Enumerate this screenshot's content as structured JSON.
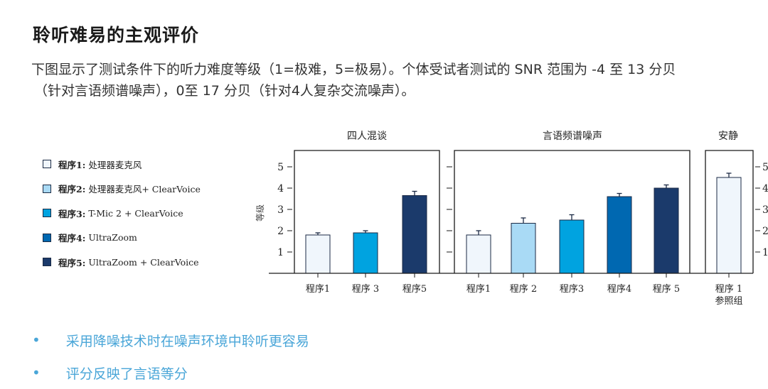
{
  "page": {
    "title": "聆听难易的主观评价",
    "desc_line1": "下图显示了测试条件下的听力难度等级（1=极难，5=极易）。个体受试者测试的 SNR 范围为 -4 至 13 分贝",
    "desc_line2": "（针对言语频谱噪声），0至 17 分贝（针对4人复杂交流噪声）。"
  },
  "legend": [
    {
      "prefix": "程序1:",
      "text": "处理器麦克风",
      "color": "#f0f6fc"
    },
    {
      "prefix": "程序2:",
      "text": "处理器麦克风+ ClearVoice",
      "color": "#a9daf5"
    },
    {
      "prefix": "程序3:",
      "text": "T-Mic 2 + ClearVoice",
      "color": "#00a3e0"
    },
    {
      "prefix": "程序4:",
      "text": "UltraZoom",
      "color": "#0068b1"
    },
    {
      "prefix": "程序5:",
      "text": "UltraZoom + ClearVoice",
      "color": "#1b3a6b"
    }
  ],
  "bullets": [
    "采用降噪技术时在噪声环境中聆听更容易",
    "评分反映了言语等分"
  ],
  "chart_data": {
    "type": "bar",
    "ylabel": "等级",
    "ylim": [
      0,
      5
    ],
    "yticks": [
      1,
      2,
      3,
      4,
      5
    ],
    "panels": [
      {
        "title": "四人混谈",
        "categories": [
          "程序1",
          "程序 3",
          "程序5"
        ],
        "values": [
          1.8,
          1.9,
          3.65
        ],
        "errors": [
          0.1,
          0.1,
          0.2
        ],
        "colors": [
          "#f0f6fc",
          "#00a3e0",
          "#1b3a6b"
        ]
      },
      {
        "title": "言语频谱噪声",
        "categories": [
          "程序1",
          "程序 2",
          "程序3",
          "程序4",
          "程序 5"
        ],
        "values": [
          1.8,
          2.35,
          2.5,
          3.6,
          4.0
        ],
        "errors": [
          0.2,
          0.25,
          0.25,
          0.15,
          0.15
        ],
        "colors": [
          "#f0f6fc",
          "#a9daf5",
          "#00a3e0",
          "#0068b1",
          "#1b3a6b"
        ]
      },
      {
        "title": "安静",
        "categories": [
          "程序 1\n参照组"
        ],
        "values": [
          4.5
        ],
        "errors": [
          0.2
        ],
        "colors": [
          "#f0f6fc"
        ]
      }
    ]
  }
}
